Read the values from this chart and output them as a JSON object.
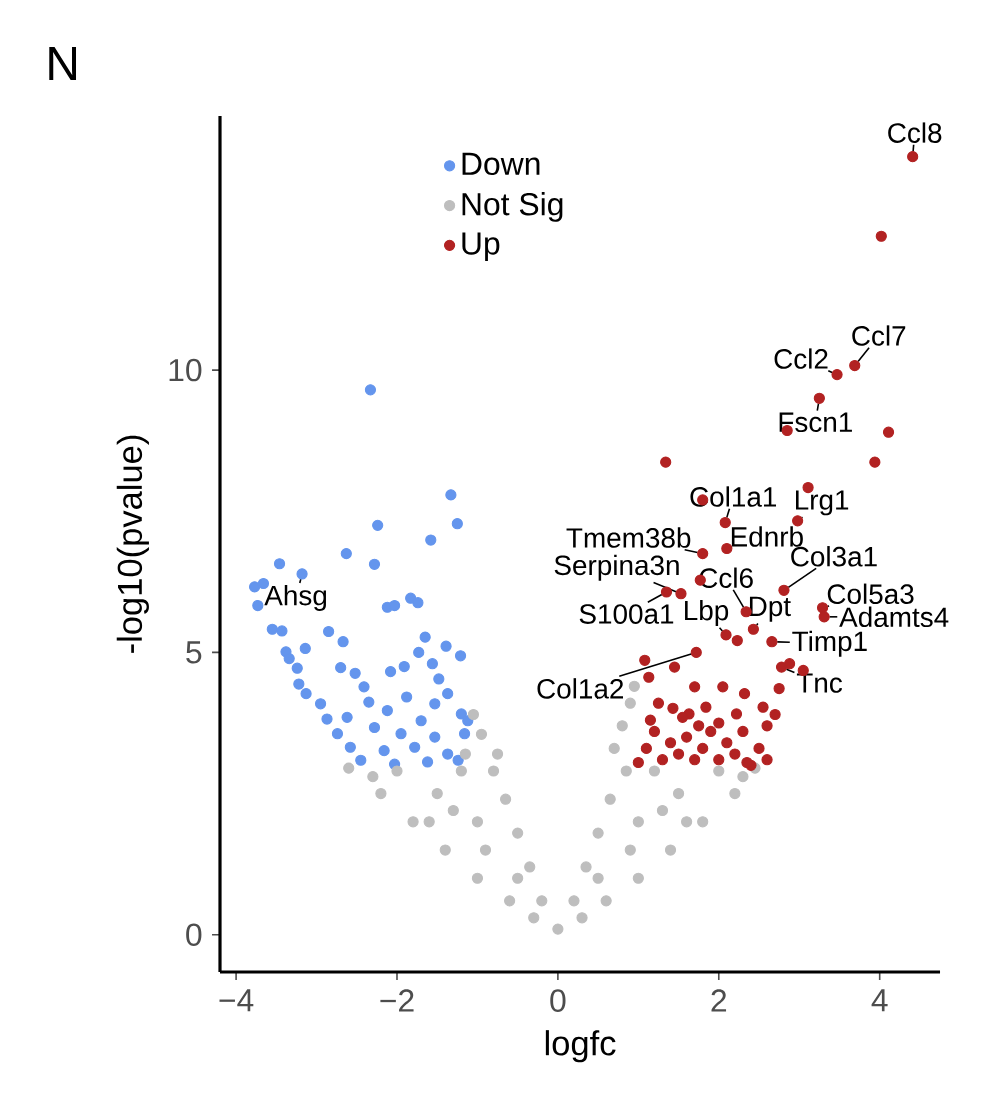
{
  "chart_data": {
    "type": "scatter",
    "title": "N",
    "xlabel": "logfc",
    "ylabel": "-log10(pvalue)",
    "xlim": [
      -4.2,
      4.75
    ],
    "ylim": [
      -0.66,
      14.5
    ],
    "xticks": [
      {
        "value": -4,
        "label": "−4"
      },
      {
        "value": -2,
        "label": "−2"
      },
      0,
      2,
      4
    ],
    "yticks": [
      0,
      5,
      10
    ],
    "grid": false,
    "legend": "top left",
    "marker": "circle",
    "series": [
      {
        "name": "Down",
        "color": "#6495ed",
        "x": [
          -2.33,
          -1.33,
          -1.25,
          -2.24,
          -1.58,
          -2.63,
          -2.28,
          -3.46,
          -3.18,
          -3.77,
          -3.66,
          -3.73,
          -2.12,
          -2.03,
          -1.83,
          -1.74,
          -3.55,
          -3.43,
          -2.85,
          -2.67,
          -1.65,
          -3.38,
          -3.14,
          -1.73,
          -1.39,
          -1.21,
          -3.34,
          -2.7,
          -2.52,
          -2.08,
          -1.91,
          -1.56,
          -3.24,
          -3.22,
          -2.41,
          -1.48,
          -3.13,
          -2.95,
          -2.35,
          -1.88,
          -1.53,
          -1.37,
          -2.87,
          -2.62,
          -2.12,
          -1.7,
          -1.2,
          -2.74,
          -2.28,
          -1.95,
          -1.53,
          -1.16,
          -2.58,
          -2.16,
          -1.78,
          -1.37,
          -2.45,
          -2.03,
          -1.62,
          -1.24,
          -1.12
        ],
        "values": [
          9.65,
          7.79,
          7.28,
          7.25,
          6.99,
          6.75,
          6.56,
          6.57,
          6.39,
          6.16,
          6.22,
          5.83,
          5.8,
          5.83,
          5.96,
          5.88,
          5.41,
          5.38,
          5.37,
          5.19,
          5.27,
          5.01,
          5.07,
          5.0,
          5.11,
          4.94,
          4.89,
          4.73,
          4.63,
          4.66,
          4.75,
          4.8,
          4.72,
          4.44,
          4.39,
          4.53,
          4.27,
          4.09,
          4.12,
          4.21,
          4.09,
          4.27,
          3.82,
          3.85,
          3.97,
          3.79,
          3.91,
          3.56,
          3.67,
          3.56,
          3.5,
          3.56,
          3.32,
          3.26,
          3.32,
          3.2,
          3.09,
          3.02,
          3.06,
          3.09,
          3.79
        ]
      },
      {
        "name": "Not Sig",
        "color": "#bebebe",
        "x": [
          0,
          -0.3,
          0.3,
          -0.6,
          0.6,
          -1,
          1,
          -1.4,
          1.4,
          -1.8,
          1.8,
          -2.2,
          2.2,
          -2.6,
          2.45,
          -0.2,
          0.2,
          -0.35,
          0.35,
          -0.5,
          0.5,
          -0.65,
          0.65,
          -0.8,
          0.85,
          -0.5,
          0.5,
          -1.0,
          1.0,
          -1.5,
          1.5,
          -2.0,
          2.0,
          -1.2,
          1.2,
          -0.9,
          0.9,
          -1.6,
          1.6,
          -0.75,
          -0.95,
          -1.05,
          0.7,
          0.8,
          0.9,
          0.95,
          -1.15,
          -1.3,
          1.3,
          -2.3,
          2.3
        ],
        "values": [
          0.1,
          0.3,
          0.3,
          0.6,
          0.6,
          1,
          1,
          1.5,
          1.5,
          2.0,
          2.0,
          2.5,
          2.5,
          2.95,
          2.95,
          0.6,
          0.6,
          1.2,
          1.2,
          1.8,
          1.8,
          2.4,
          2.4,
          2.9,
          2.9,
          1.0,
          1.0,
          2.0,
          2.0,
          2.5,
          2.5,
          2.9,
          2.9,
          2.9,
          2.9,
          1.5,
          1.5,
          2.0,
          2.0,
          3.2,
          3.55,
          3.9,
          3.3,
          3.7,
          4.1,
          4.4,
          3.2,
          2.2,
          2.2,
          2.8,
          2.8
        ]
      },
      {
        "name": "Up",
        "color": "#b22222",
        "x": [
          4.41,
          4.02,
          3.69,
          3.47,
          3.25,
          2.85,
          4.11,
          3.94,
          1.34,
          3.11,
          1.8,
          2.98,
          2.08,
          2.1,
          1.8,
          1.53,
          1.35,
          1.77,
          2.81,
          3.29,
          3.31,
          2.34,
          2.43,
          2.09,
          2.23,
          2.66,
          2.78,
          1.72,
          1.08,
          1.45,
          2.88,
          3.05,
          1.7,
          2.75,
          1.13,
          2.05,
          2.32,
          1.84,
          2.55,
          1.43,
          1.63,
          2.22,
          1.0,
          1.1,
          1.2,
          1.3,
          1.4,
          1.5,
          1.6,
          1.7,
          1.8,
          1.9,
          2.0,
          2.1,
          2.2,
          2.3,
          2.4,
          2.5,
          2.6,
          2.7,
          1.15,
          1.25,
          1.55,
          2.0,
          2.35,
          1.75,
          2.6
        ],
        "values": [
          13.78,
          12.37,
          10.08,
          9.92,
          9.5,
          8.93,
          8.9,
          8.37,
          8.37,
          7.92,
          7.7,
          7.33,
          7.3,
          6.84,
          6.75,
          6.04,
          6.07,
          6.28,
          6.1,
          5.79,
          5.63,
          5.72,
          5.41,
          5.31,
          5.21,
          5.19,
          4.74,
          5.0,
          4.86,
          4.74,
          4.8,
          4.68,
          4.39,
          4.36,
          4.56,
          4.39,
          4.27,
          4.03,
          4.03,
          4.01,
          3.91,
          3.91,
          3.05,
          3.3,
          3.6,
          3.1,
          3.4,
          3.2,
          3.5,
          3.1,
          3.3,
          3.6,
          3.1,
          3.4,
          3.2,
          3.6,
          3.0,
          3.3,
          3.7,
          3.9,
          3.8,
          4.1,
          3.85,
          3.75,
          3.05,
          3.7,
          3.1
        ]
      }
    ],
    "annotations": [
      {
        "text": "Ccl8",
        "x": 4.41,
        "y": 13.78
      },
      {
        "text": "Ccl7",
        "x": 3.69,
        "y": 10.08
      },
      {
        "text": "Ccl2",
        "x": 3.47,
        "y": 9.92
      },
      {
        "text": "Fscn1",
        "x": 3.25,
        "y": 9.5
      },
      {
        "text": "Col1a1",
        "x": 2.08,
        "y": 7.3
      },
      {
        "text": "Lrg1",
        "x": 2.98,
        "y": 7.33
      },
      {
        "text": "Ednrb",
        "x": 2.1,
        "y": 6.84
      },
      {
        "text": "Tmem38b",
        "x": 1.8,
        "y": 6.75
      },
      {
        "text": "Serpina3n",
        "x": 1.53,
        "y": 6.04
      },
      {
        "text": "Ccl6",
        "x": 2.34,
        "y": 5.72
      },
      {
        "text": "Col3a1",
        "x": 2.81,
        "y": 6.1
      },
      {
        "text": "Col5a3",
        "x": 3.29,
        "y": 5.79
      },
      {
        "text": "Adamts4",
        "x": 3.31,
        "y": 5.63
      },
      {
        "text": "Dpt",
        "x": 2.43,
        "y": 5.41
      },
      {
        "text": "Lbp",
        "x": 2.09,
        "y": 5.31
      },
      {
        "text": "S100a1",
        "x": 1.35,
        "y": 6.07
      },
      {
        "text": "Col1a2",
        "x": 1.72,
        "y": 5.0
      },
      {
        "text": "Timp1",
        "x": 2.66,
        "y": 5.19
      },
      {
        "text": "Tnc",
        "x": 2.78,
        "y": 4.74
      },
      {
        "text": "Ahsg",
        "x": -3.18,
        "y": 6.39
      }
    ]
  }
}
